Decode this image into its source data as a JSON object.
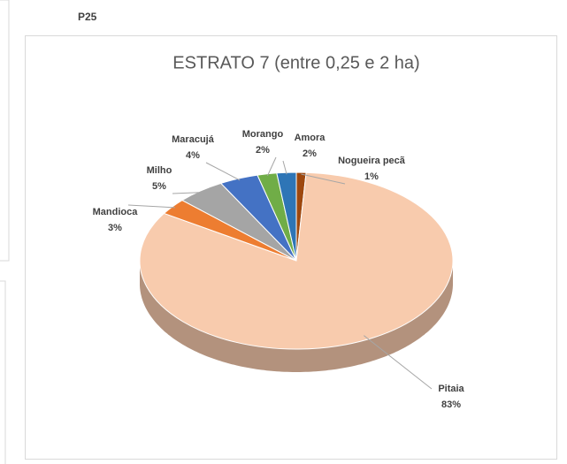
{
  "page_label": "P25",
  "chart_data": {
    "type": "pie3d",
    "title": "ESTRATO 7 (entre 0,25 e 2 ha)",
    "categories": [
      "Nogueira pecã",
      "Pitaia",
      "Mandioca",
      "Milho",
      "Maracujá",
      "Morango",
      "Amora"
    ],
    "values": [
      1,
      83,
      3,
      5,
      4,
      2,
      2
    ],
    "value_labels": [
      "1%",
      "83%",
      "3%",
      "5%",
      "4%",
      "2%",
      "2%"
    ],
    "colors": [
      "#9e480e",
      "#f8cbad",
      "#ed7d31",
      "#a5a5a5",
      "#4472c4",
      "#70ad47",
      "#2e75b6"
    ]
  }
}
